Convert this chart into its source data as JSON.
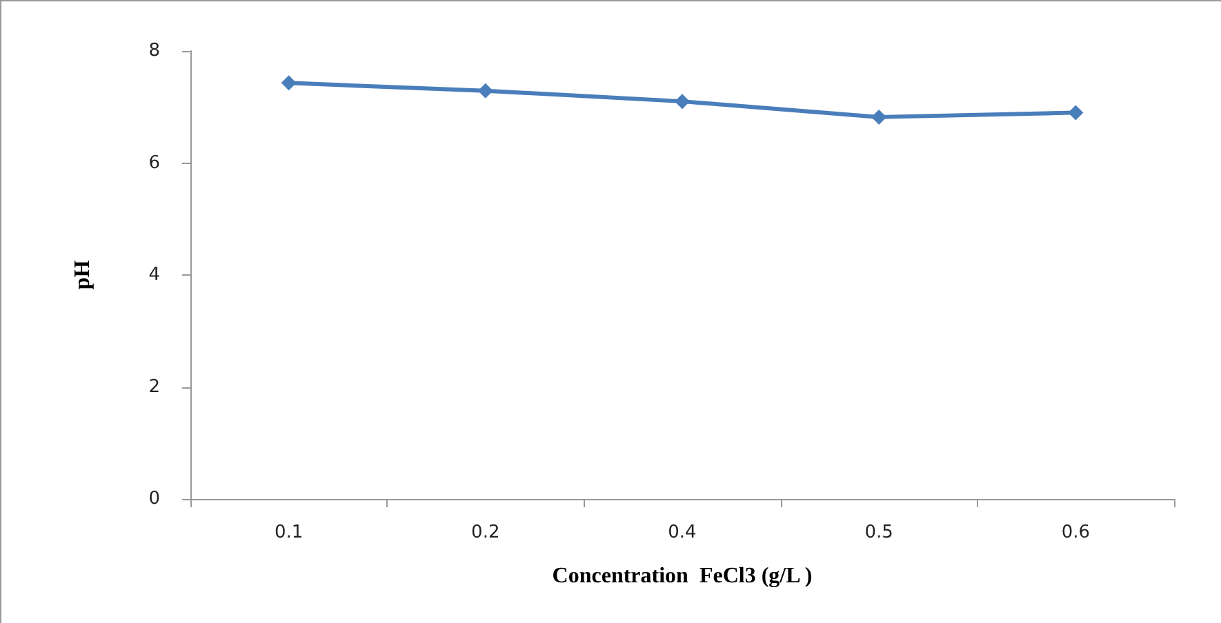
{
  "chart_data": {
    "type": "line",
    "xlabel": "Concentration  FeCl3 (g/L )",
    "ylabel": "pH",
    "categories": [
      "0.1",
      "0.2",
      "0.4",
      "0.5",
      "0.6"
    ],
    "series": [
      {
        "color": "#4a7ebb",
        "values": [
          7.43,
          7.29,
          7.1,
          6.82,
          6.9
        ]
      }
    ],
    "ylim": [
      0,
      8
    ],
    "yticks": [
      0,
      2,
      4,
      6,
      8
    ],
    "grid": false,
    "marker": "diamond",
    "line_style": "solid"
  }
}
